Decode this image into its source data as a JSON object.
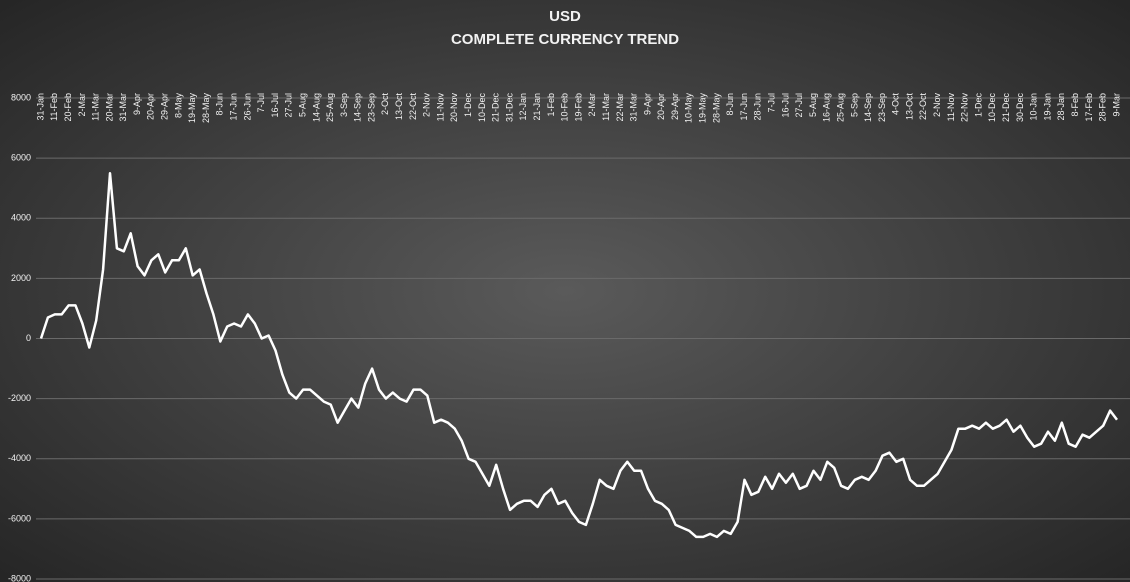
{
  "chart_data": {
    "type": "line",
    "title": "USD",
    "subtitle": "COMPLETE CURRENCY TREND",
    "categories": [
      "31-Jan",
      null,
      "11-Feb",
      null,
      "20-Feb",
      null,
      "2-Mar",
      null,
      "11-Mar",
      null,
      "20-Mar",
      null,
      "31-Mar",
      null,
      "9-Apr",
      null,
      "20-Apr",
      null,
      "29-Apr",
      null,
      "8-May",
      null,
      "19-May",
      null,
      "28-May",
      null,
      "8-Jun",
      null,
      "17-Jun",
      null,
      "26-Jun",
      null,
      "7-Jul",
      null,
      "16-Jul",
      null,
      "27-Jul",
      null,
      "5-Aug",
      null,
      "14-Aug",
      null,
      "25-Aug",
      null,
      "3-Sep",
      null,
      "14-Sep",
      null,
      "23-Sep",
      null,
      "2-Oct",
      null,
      "13-Oct",
      null,
      "22-Oct",
      null,
      "2-Nov",
      null,
      "11-Nov",
      null,
      "20-Nov",
      null,
      "1-Dec",
      null,
      "10-Dec",
      null,
      "21-Dec",
      null,
      "31-Dec",
      null,
      "12-Jan",
      null,
      "21-Jan",
      null,
      "1-Feb",
      null,
      "10-Feb",
      null,
      "19-Feb",
      null,
      "2-Mar",
      null,
      "11-Mar",
      null,
      "22-Mar",
      null,
      "31-Mar",
      null,
      "9-Apr",
      null,
      "20-Apr",
      null,
      "29-Apr",
      null,
      "10-May",
      null,
      "19-May",
      null,
      "28-May",
      null,
      "8-Jun",
      null,
      "17-Jun",
      null,
      "28-Jun",
      null,
      "7-Jul",
      null,
      "16-Jul",
      null,
      "27-Jul",
      null,
      "5-Aug",
      null,
      "16-Aug",
      null,
      "25-Aug",
      null,
      "5-Sep",
      null,
      "14-Sep",
      null,
      "23-Sep",
      null,
      "4-Oct",
      null,
      "13-Oct",
      null,
      "22-Oct",
      null,
      "2-Nov",
      null,
      "11-Nov",
      null,
      "22-Nov",
      null,
      "1-Dec",
      null,
      "10-Dec",
      null,
      "21-Dec",
      null,
      "30-Dec",
      null,
      "10-Jan",
      null,
      "19-Jan",
      null,
      "28-Jan",
      null,
      "8-Feb",
      null,
      "17-Feb",
      null,
      "28-Feb",
      null,
      "9-Mar"
    ],
    "values": [
      0,
      700,
      800,
      800,
      1100,
      1100,
      500,
      -300,
      600,
      2300,
      5500,
      3000,
      2900,
      3500,
      2400,
      2100,
      2600,
      2800,
      2200,
      2600,
      2600,
      3000,
      2100,
      2300,
      1500,
      800,
      -100,
      400,
      500,
      400,
      800,
      500,
      0,
      100,
      -400,
      -1200,
      -1800,
      -2000,
      -1700,
      -1700,
      -1900,
      -2100,
      -2200,
      -2800,
      -2400,
      -2000,
      -2300,
      -1500,
      -1000,
      -1700,
      -2000,
      -1800,
      -2000,
      -2100,
      -1700,
      -1700,
      -1900,
      -2800,
      -2700,
      -2800,
      -3000,
      -3400,
      -4000,
      -4100,
      -4500,
      -4900,
      -4200,
      -5000,
      -5700,
      -5500,
      -5400,
      -5400,
      -5600,
      -5200,
      -5000,
      -5500,
      -5400,
      -5800,
      -6100,
      -6200,
      -5500,
      -4700,
      -4900,
      -5000,
      -4400,
      -4100,
      -4400,
      -4400,
      -5000,
      -5400,
      -5500,
      -5700,
      -6200,
      -6300,
      -6400,
      -6600,
      -6600,
      -6500,
      -6600,
      -6400,
      -6500,
      -6100,
      -4700,
      -5200,
      -5100,
      -4600,
      -5000,
      -4500,
      -4800,
      -4500,
      -5000,
      -4900,
      -4400,
      -4700,
      -4100,
      -4300,
      -4900,
      -5000,
      -4700,
      -4600,
      -4700,
      -4400,
      -3900,
      -3800,
      -4100,
      -4000,
      -4700,
      -4900,
      -4900,
      -4700,
      -4500,
      -4100,
      -3700,
      -3000,
      -3000,
      -2900,
      -3000,
      -2800,
      -3000,
      -2900,
      -2700,
      -3100,
      -2900,
      -3300,
      -3600,
      -3500,
      -3100,
      -3400,
      -2800,
      -3500,
      -3600,
      -3200,
      -3300,
      -3100,
      -2900,
      -2400,
      -2700
    ],
    "color": "#ffffff",
    "ylim": [
      -8000,
      8000
    ],
    "yticks": [
      -8000,
      -6000,
      -4000,
      -2000,
      0,
      2000,
      4000,
      6000,
      8000
    ],
    "grid": true
  }
}
